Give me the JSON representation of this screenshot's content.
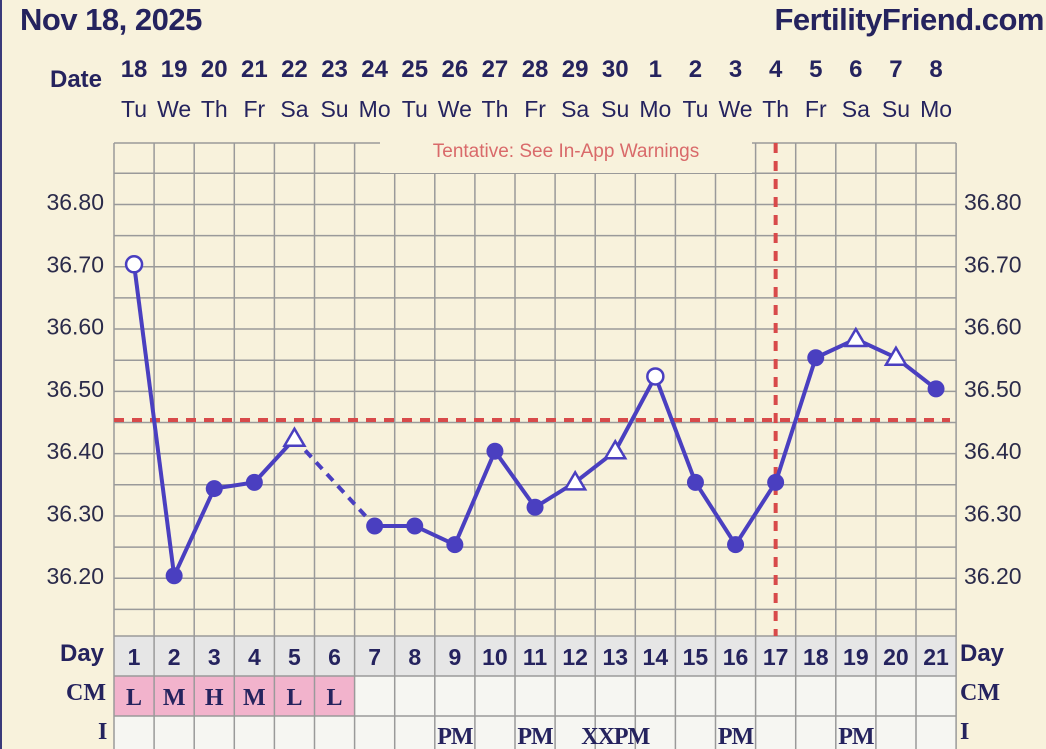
{
  "header": {
    "date": "Nov 18, 2025",
    "brand": "FertilityFriend.com"
  },
  "row_labels": {
    "date": "Date",
    "day": "Day",
    "cm": "CM",
    "i": "I"
  },
  "warning": "Tentative: See In-App Warnings",
  "colors": {
    "line": "#4a3fc0",
    "coverline": "#d84a4a",
    "grid": "#9a9a9a",
    "cm_fill": "#f2b3cc",
    "text": "#25235e"
  },
  "chart_data": {
    "type": "line",
    "dates": [
      "18",
      "19",
      "20",
      "21",
      "22",
      "23",
      "24",
      "25",
      "26",
      "27",
      "28",
      "29",
      "30",
      "1",
      "2",
      "3",
      "4",
      "5",
      "6",
      "7",
      "8"
    ],
    "weekdays": [
      "Tu",
      "We",
      "Th",
      "Fr",
      "Sa",
      "Su",
      "Mo",
      "Tu",
      "We",
      "Th",
      "Fr",
      "Sa",
      "Su",
      "Mo",
      "Tu",
      "We",
      "Th",
      "Fr",
      "Sa",
      "Su",
      "Mo"
    ],
    "cycle_days": [
      "1",
      "2",
      "3",
      "4",
      "5",
      "6",
      "7",
      "8",
      "9",
      "10",
      "11",
      "12",
      "13",
      "14",
      "15",
      "16",
      "17",
      "18",
      "19",
      "20",
      "21"
    ],
    "yticks": [
      "36.80",
      "36.70",
      "36.60",
      "36.50",
      "36.40",
      "36.30",
      "36.20"
    ],
    "ylim": [
      36.1,
      36.9
    ],
    "temperatures": [
      36.7,
      36.2,
      36.34,
      36.35,
      36.42,
      null,
      36.28,
      36.28,
      36.25,
      36.4,
      36.31,
      36.35,
      36.4,
      36.52,
      36.35,
      36.25,
      36.35,
      36.55,
      36.58,
      36.55,
      36.5
    ],
    "markers": [
      "open-circle",
      "filled",
      "filled",
      "filled",
      "open-triangle",
      null,
      "filled",
      "filled",
      "filled",
      "filled",
      "filled",
      "open-triangle",
      "open-triangle",
      "open-circle",
      "filled",
      "filled",
      "filled",
      "filled",
      "open-triangle",
      "open-triangle",
      "filled"
    ],
    "dashed_segment_after_index": 4,
    "coverline": 36.45,
    "ovulation_day": 17,
    "cm": [
      "L",
      "M",
      "H",
      "M",
      "L",
      "L",
      "",
      "",
      "",
      "",
      "",
      "",
      "",
      "",
      "",
      "",
      "",
      "",
      "",
      "",
      ""
    ],
    "i_row": [
      "",
      "",
      "",
      "",
      "",
      "",
      "",
      "",
      "PM",
      "",
      "PM",
      "",
      "XXPM",
      "",
      "",
      "PM",
      "",
      "",
      "PM",
      "",
      ""
    ]
  }
}
